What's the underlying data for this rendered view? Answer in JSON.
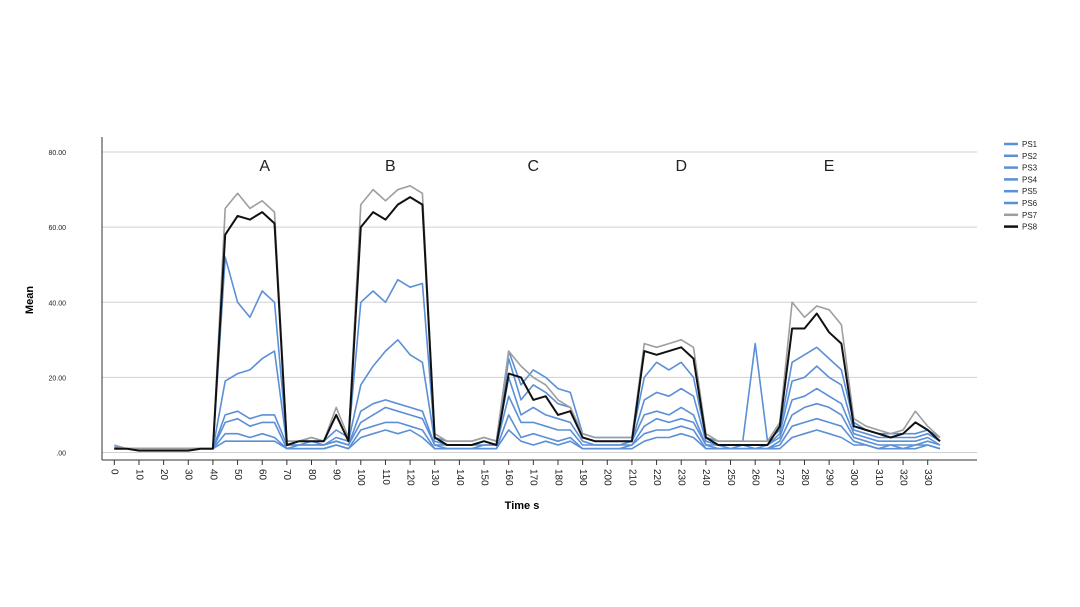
{
  "chart_data": {
    "type": "line",
    "title": "",
    "xlabel": "Time s",
    "ylabel": "Mean",
    "ylim": [
      -2,
      84
    ],
    "xlim": [
      -5,
      350
    ],
    "y_ticks": [
      0,
      20,
      40,
      60,
      80
    ],
    "y_tick_labels": [
      ".00",
      "20.00",
      "40.00",
      "60.00",
      "80.00"
    ],
    "x_ticks": [
      0,
      10,
      20,
      30,
      40,
      50,
      60,
      70,
      80,
      90,
      100,
      110,
      120,
      130,
      140,
      150,
      160,
      170,
      180,
      190,
      200,
      210,
      220,
      230,
      240,
      250,
      260,
      270,
      280,
      290,
      300,
      310,
      320,
      330
    ],
    "x_tick_labels": [
      "0",
      "10",
      "20",
      "30",
      "40",
      "50",
      "60",
      "70",
      "80",
      "90",
      "100",
      "110",
      "120",
      "130",
      "140",
      "150",
      "160",
      "170",
      "180",
      "190",
      "200",
      "210",
      "220",
      "230",
      "240",
      "250",
      "260",
      "270",
      "280",
      "290",
      "300",
      "310",
      "320",
      "330"
    ],
    "grid": {
      "horizontal": true,
      "vertical": false
    },
    "legend": {
      "position": "right"
    },
    "annotations": [
      {
        "text": "A",
        "x": 61,
        "y": 75
      },
      {
        "text": "B",
        "x": 112,
        "y": 75
      },
      {
        "text": "C",
        "x": 170,
        "y": 75
      },
      {
        "text": "D",
        "x": 230,
        "y": 75
      },
      {
        "text": "E",
        "x": 290,
        "y": 75
      }
    ],
    "x": [
      0,
      5,
      10,
      15,
      20,
      25,
      30,
      35,
      40,
      45,
      50,
      55,
      60,
      65,
      70,
      75,
      80,
      85,
      90,
      95,
      100,
      105,
      110,
      115,
      120,
      125,
      130,
      135,
      140,
      145,
      150,
      155,
      160,
      165,
      170,
      175,
      180,
      185,
      190,
      195,
      200,
      205,
      210,
      215,
      220,
      225,
      230,
      235,
      240,
      245,
      250,
      255,
      260,
      265,
      270,
      275,
      280,
      285,
      290,
      295,
      300,
      305,
      310,
      315,
      320,
      325,
      330,
      335
    ],
    "series": [
      {
        "name": "PS1",
        "color": "#5b8fd6",
        "values": [
          1.5,
          1,
          1,
          1,
          1,
          1,
          1,
          1,
          1,
          3,
          3,
          3,
          3,
          3,
          1,
          1,
          1,
          1,
          2,
          1,
          4,
          5,
          6,
          5,
          6,
          4,
          1,
          1,
          1,
          1,
          1,
          1,
          6,
          3,
          2,
          3,
          2,
          3,
          1,
          1,
          1,
          1,
          1,
          3,
          4,
          4,
          5,
          4,
          1,
          1,
          1,
          1,
          1,
          1,
          1,
          4,
          5,
          6,
          5,
          4,
          2,
          2,
          1,
          1,
          1,
          1,
          2,
          1
        ]
      },
      {
        "name": "PS2",
        "color": "#5b8fd6",
        "values": [
          1,
          1,
          1,
          1,
          1,
          1,
          1,
          1,
          1,
          5,
          5,
          4,
          5,
          4,
          1,
          1,
          1,
          1,
          2,
          1,
          6,
          7,
          8,
          8,
          7,
          6,
          1,
          1,
          1,
          1,
          1,
          1,
          10,
          4,
          5,
          4,
          3,
          4,
          1,
          1,
          1,
          1,
          2,
          5,
          6,
          6,
          7,
          6,
          1,
          1,
          1,
          1,
          1,
          1,
          2,
          7,
          8,
          9,
          8,
          7,
          3,
          2,
          1,
          2,
          1,
          2,
          2,
          1
        ]
      },
      {
        "name": "PS3",
        "color": "#5b8fd6",
        "values": [
          1,
          1,
          1,
          1,
          1,
          1,
          1,
          1,
          1,
          8,
          9,
          7,
          8,
          8,
          1,
          2,
          2,
          2,
          3,
          2,
          8,
          10,
          12,
          11,
          10,
          9,
          2,
          1,
          1,
          1,
          2,
          2,
          15,
          8,
          8,
          7,
          6,
          6,
          2,
          2,
          2,
          2,
          2,
          7,
          9,
          8,
          9,
          8,
          2,
          1,
          1,
          1,
          1,
          1,
          3,
          10,
          12,
          13,
          12,
          10,
          4,
          3,
          2,
          2,
          2,
          2,
          3,
          2
        ]
      },
      {
        "name": "PS4",
        "color": "#5b8fd6",
        "values": [
          1,
          1,
          1,
          1,
          1,
          1,
          1,
          1,
          1,
          10,
          11,
          9,
          10,
          10,
          2,
          2,
          2,
          2,
          3,
          2,
          11,
          13,
          14,
          13,
          12,
          11,
          2,
          2,
          2,
          2,
          2,
          2,
          20,
          10,
          12,
          10,
          9,
          8,
          3,
          2,
          2,
          2,
          3,
          10,
          11,
          10,
          12,
          10,
          2,
          2,
          1,
          2,
          1,
          2,
          4,
          14,
          15,
          17,
          15,
          13,
          5,
          4,
          3,
          3,
          3,
          3,
          4,
          2
        ]
      },
      {
        "name": "PS5",
        "color": "#5b8fd6",
        "values": [
          1,
          1,
          1,
          1,
          1,
          1,
          1,
          1,
          1,
          19,
          21,
          22,
          25,
          27,
          2,
          2,
          3,
          2,
          4,
          3,
          18,
          23,
          27,
          30,
          26,
          24,
          3,
          2,
          2,
          2,
          3,
          2,
          25,
          14,
          18,
          16,
          13,
          12,
          4,
          3,
          3,
          3,
          3,
          14,
          16,
          15,
          17,
          15,
          3,
          2,
          2,
          2,
          2,
          2,
          5,
          19,
          20,
          23,
          20,
          18,
          6,
          5,
          4,
          4,
          4,
          4,
          5,
          3
        ]
      },
      {
        "name": "PS6",
        "color": "#5b8fd6",
        "values": [
          1,
          1,
          1,
          1,
          1,
          1,
          1,
          1,
          1,
          52,
          40,
          36,
          43,
          40,
          3,
          3,
          4,
          3,
          6,
          4,
          40,
          43,
          40,
          46,
          44,
          45,
          4,
          3,
          3,
          3,
          4,
          3,
          27,
          18,
          22,
          20,
          17,
          16,
          5,
          4,
          4,
          4,
          4,
          20,
          24,
          22,
          24,
          20,
          4,
          3,
          3,
          3,
          29,
          3,
          6,
          24,
          26,
          28,
          25,
          22,
          8,
          6,
          5,
          5,
          5,
          5,
          6,
          4
        ]
      },
      {
        "name": "PS7",
        "color": "#9e9e9e",
        "values": [
          2,
          1,
          1,
          1,
          1,
          1,
          1,
          1,
          1,
          65,
          69,
          65,
          67,
          64,
          3,
          3,
          4,
          3,
          12,
          4,
          66,
          70,
          67,
          70,
          71,
          69,
          5,
          3,
          3,
          3,
          4,
          3,
          27,
          23,
          20,
          18,
          14,
          12,
          5,
          4,
          4,
          4,
          4,
          29,
          28,
          29,
          30,
          28,
          5,
          3,
          3,
          3,
          3,
          3,
          8,
          40,
          36,
          39,
          38,
          34,
          9,
          7,
          6,
          5,
          6,
          11,
          7,
          4
        ]
      },
      {
        "name": "PS8",
        "color": "#111111",
        "values": [
          1,
          1,
          0.5,
          0.5,
          0.5,
          0.5,
          0.5,
          1,
          1,
          58,
          63,
          62,
          64,
          61,
          2,
          3,
          3,
          3,
          10,
          3,
          60,
          64,
          62,
          66,
          68,
          66,
          4,
          2,
          2,
          2,
          3,
          2,
          21,
          20,
          14,
          15,
          10,
          11,
          4,
          3,
          3,
          3,
          3,
          27,
          26,
          27,
          28,
          25,
          4,
          2,
          2,
          2,
          2,
          2,
          7,
          33,
          33,
          37,
          32,
          29,
          7,
          6,
          5,
          4,
          5,
          8,
          6,
          3
        ]
      }
    ]
  }
}
